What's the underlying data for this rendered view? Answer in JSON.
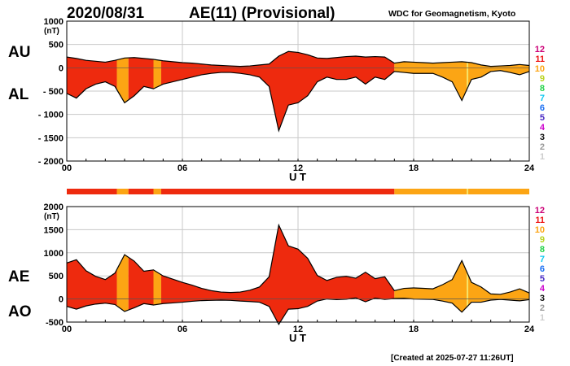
{
  "header": {
    "date": "2020/08/31",
    "title": "AE(11) (Provisional)",
    "source": "WDC for Geomagnetism, Kyoto"
  },
  "footer": {
    "created": "[Created at 2025-07-27 11:26UT]"
  },
  "colors": {
    "fill_11": "#ee2a0e",
    "fill_10": "#fca514",
    "stripe_9": "#f6e46a",
    "grid": "#c8c8c8",
    "legend": [
      "#cccccc",
      "#999999",
      "#111111",
      "#cc00cc",
      "#4a2bc4",
      "#1b6ff2",
      "#11c8f0",
      "#24d24a",
      "#b8d21e",
      "#fca514",
      "#ee1010",
      "#cc0077"
    ]
  },
  "legend_levels": [
    "1",
    "2",
    "3",
    "4",
    "5",
    "6",
    "7",
    "8",
    "9",
    "10",
    "11",
    "12"
  ],
  "chart_data": [
    {
      "type": "area",
      "panel": "top",
      "upper_label": "AU",
      "lower_label": "AL",
      "unit": "(nT)",
      "xlabel": "U T",
      "xlim": [
        0,
        24
      ],
      "ylim": [
        -2000,
        1000
      ],
      "xticks": [
        "00",
        "06",
        "12",
        "18",
        "24"
      ],
      "yticks": [
        "1000",
        "500",
        "0",
        "- 500",
        "- 1000",
        "- 1500",
        "- 2000"
      ],
      "station_count_segments": [
        {
          "from": 0,
          "to": 2.6,
          "count": 11
        },
        {
          "from": 2.6,
          "to": 3.2,
          "count": 10
        },
        {
          "from": 3.2,
          "to": 4.5,
          "count": 11
        },
        {
          "from": 4.5,
          "to": 4.9,
          "count": 10
        },
        {
          "from": 4.9,
          "to": 17.0,
          "count": 11
        },
        {
          "from": 17.0,
          "to": 24,
          "count": 10
        }
      ],
      "series": [
        {
          "name": "AU",
          "x": [
            0,
            0.5,
            1,
            1.5,
            2,
            2.5,
            3,
            3.5,
            4,
            4.5,
            5,
            5.5,
            6,
            6.5,
            7,
            7.5,
            8,
            8.5,
            9,
            9.5,
            10,
            10.5,
            11,
            11.5,
            12,
            12.5,
            13,
            13.5,
            14,
            14.5,
            15,
            15.5,
            16,
            16.5,
            17,
            17.5,
            18,
            18.5,
            19,
            19.5,
            20,
            20.5,
            21,
            21.5,
            22,
            22.5,
            23,
            23.5,
            24
          ],
          "values": [
            230,
            200,
            160,
            140,
            120,
            160,
            210,
            220,
            200,
            180,
            150,
            130,
            110,
            100,
            80,
            60,
            50,
            40,
            30,
            40,
            60,
            80,
            250,
            350,
            330,
            280,
            210,
            200,
            220,
            240,
            250,
            230,
            240,
            230,
            100,
            130,
            120,
            110,
            100,
            110,
            120,
            130,
            110,
            60,
            30,
            40,
            50,
            70,
            50
          ]
        },
        {
          "name": "AL",
          "x": [
            0,
            0.5,
            1,
            1.5,
            2,
            2.5,
            3,
            3.5,
            4,
            4.5,
            5,
            5.5,
            6,
            6.5,
            7,
            7.5,
            8,
            8.5,
            9,
            9.5,
            10,
            10.5,
            11,
            11.5,
            12,
            12.5,
            13,
            13.5,
            14,
            14.5,
            15,
            15.5,
            16,
            16.5,
            17,
            17.5,
            18,
            18.5,
            19,
            19.5,
            20,
            20.5,
            21,
            21.5,
            22,
            22.5,
            23,
            23.5,
            24
          ],
          "values": [
            -550,
            -650,
            -450,
            -350,
            -300,
            -400,
            -750,
            -600,
            -400,
            -450,
            -350,
            -300,
            -250,
            -200,
            -150,
            -120,
            -100,
            -100,
            -120,
            -150,
            -200,
            -400,
            -1350,
            -800,
            -750,
            -600,
            -300,
            -200,
            -250,
            -250,
            -200,
            -350,
            -200,
            -250,
            -80,
            -100,
            -120,
            -120,
            -120,
            -200,
            -300,
            -700,
            -250,
            -200,
            -80,
            -60,
            -100,
            -150,
            -80
          ]
        }
      ]
    },
    {
      "type": "area",
      "panel": "bottom",
      "upper_label": "AE",
      "lower_label": "AO",
      "unit": "(nT)",
      "xlabel": "U T",
      "xlim": [
        0,
        24
      ],
      "ylim": [
        -500,
        2000
      ],
      "xticks": [
        "00",
        "06",
        "12",
        "18",
        "24"
      ],
      "yticks": [
        "2000",
        "1500",
        "1000",
        "500",
        "0",
        "-500"
      ],
      "series": [
        {
          "name": "AE",
          "x": [
            0,
            0.5,
            1,
            1.5,
            2,
            2.5,
            3,
            3.5,
            4,
            4.5,
            5,
            5.5,
            6,
            6.5,
            7,
            7.5,
            8,
            8.5,
            9,
            9.5,
            10,
            10.5,
            11,
            11.5,
            12,
            12.5,
            13,
            13.5,
            14,
            14.5,
            15,
            15.5,
            16,
            16.5,
            17,
            17.5,
            18,
            18.5,
            19,
            19.5,
            20,
            20.5,
            21,
            21.5,
            22,
            22.5,
            23,
            23.5,
            24
          ],
          "values": [
            780,
            850,
            610,
            490,
            420,
            560,
            960,
            820,
            600,
            630,
            500,
            430,
            360,
            300,
            230,
            180,
            150,
            140,
            150,
            190,
            260,
            480,
            1600,
            1150,
            1080,
            880,
            510,
            400,
            470,
            490,
            450,
            580,
            440,
            480,
            180,
            230,
            240,
            230,
            220,
            310,
            420,
            830,
            360,
            260,
            110,
            100,
            150,
            220,
            130
          ]
        },
        {
          "name": "AO",
          "x": [
            0,
            0.5,
            1,
            1.5,
            2,
            2.5,
            3,
            3.5,
            4,
            4.5,
            5,
            5.5,
            6,
            6.5,
            7,
            7.5,
            8,
            8.5,
            9,
            9.5,
            10,
            10.5,
            11,
            11.5,
            12,
            12.5,
            13,
            13.5,
            14,
            14.5,
            15,
            15.5,
            16,
            16.5,
            17,
            17.5,
            18,
            18.5,
            19,
            19.5,
            20,
            20.5,
            21,
            21.5,
            22,
            22.5,
            23,
            23.5,
            24
          ],
          "values": [
            -160,
            -220,
            -150,
            -110,
            -90,
            -120,
            -270,
            -190,
            -100,
            -130,
            -100,
            -85,
            -70,
            -50,
            -35,
            -30,
            -25,
            -30,
            -45,
            -55,
            -70,
            -160,
            -550,
            -220,
            -210,
            -160,
            -45,
            0,
            -15,
            -5,
            25,
            -60,
            20,
            -10,
            10,
            15,
            0,
            -5,
            -10,
            -45,
            -90,
            -285,
            -70,
            -70,
            -25,
            -10,
            -25,
            -40,
            -15
          ]
        }
      ]
    }
  ]
}
